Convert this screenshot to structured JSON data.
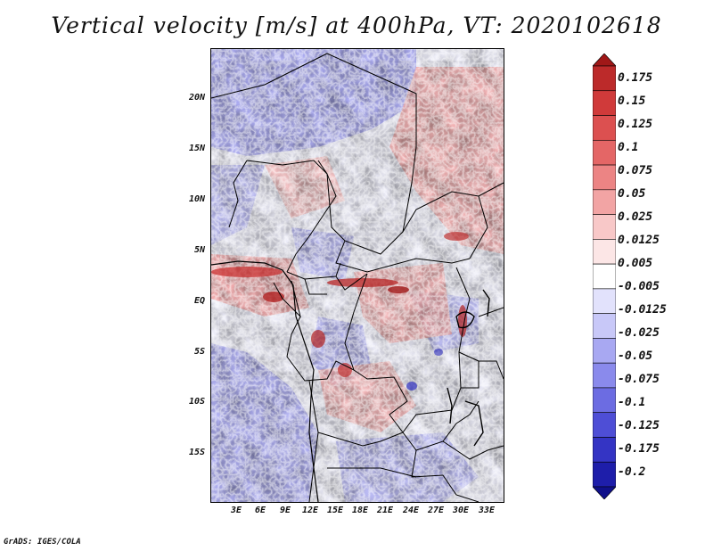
{
  "title": "Vertical velocity [m/s] at 400hPa, VT: 2020102618",
  "credit": "GrADS: IGES/COLA",
  "lat_labels": [
    "20N",
    "15N",
    "10N",
    "5N",
    "EQ",
    "5S",
    "10S",
    "15S"
  ],
  "lon_labels": [
    "3E",
    "6E",
    "9E",
    "12E",
    "15E",
    "18E",
    "21E",
    "24E",
    "27E",
    "30E",
    "33E"
  ],
  "colorbar": {
    "labels": [
      "0.175",
      "0.15",
      "0.125",
      "0.1",
      "0.075",
      "0.05",
      "0.025",
      "0.0125",
      "0.005",
      "-0.005",
      "-0.0125",
      "-0.025",
      "-0.05",
      "-0.075",
      "-0.1",
      "-0.125",
      "-0.175",
      "-0.2"
    ],
    "colors": [
      "#a01818",
      "#bc2a2a",
      "#d03a3a",
      "#dc5050",
      "#e46666",
      "#ec8484",
      "#f2a4a4",
      "#f8c8c8",
      "#fce6e6",
      "#ffffff",
      "#e2e2fc",
      "#c8c8f8",
      "#a8a8f2",
      "#8a8aec",
      "#6c6ce2",
      "#4e4ed6",
      "#3434c4",
      "#1e1eaa",
      "#10108a"
    ]
  }
}
